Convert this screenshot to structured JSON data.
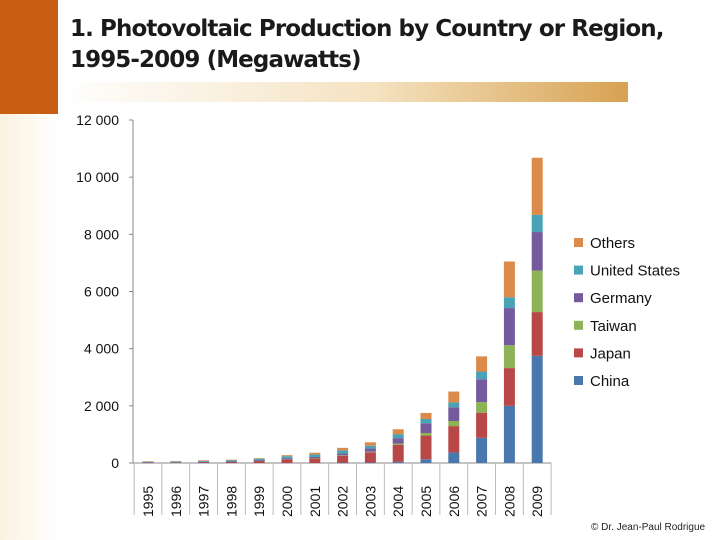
{
  "header": {
    "title": "1. Photovoltaic Production by Country or Region, 1995-2009 (Megawatts)"
  },
  "footer": {
    "credit": "© Dr. Jean-Paul Rodrigue"
  },
  "chart_data": {
    "type": "bar",
    "stacked": true,
    "title": "1. Photovoltaic Production by Country or Region, 1995-2009 (Megawatts)",
    "xlabel": "",
    "ylabel": "",
    "ylim": [
      0,
      12000
    ],
    "y_ticks": [
      0,
      2000,
      4000,
      6000,
      8000,
      10000,
      12000
    ],
    "y_tick_labels": [
      "0",
      "2 000",
      "4 000",
      "6 000",
      "8 000",
      "10 000",
      "12 000"
    ],
    "grid": false,
    "legend_position": "right",
    "categories": [
      "1995",
      "1996",
      "1997",
      "1998",
      "1999",
      "2000",
      "2001",
      "2002",
      "2003",
      "2004",
      "2005",
      "2006",
      "2007",
      "2008",
      "2009"
    ],
    "series": [
      {
        "name": "China",
        "color": "#4a78ad",
        "values": [
          0,
          0,
          0,
          0,
          0,
          0,
          0,
          10,
          15,
          40,
          130,
          370,
          880,
          2000,
          3750
        ]
      },
      {
        "name": "Japan",
        "color": "#b84747",
        "values": [
          15,
          20,
          35,
          45,
          80,
          130,
          170,
          250,
          360,
          600,
          830,
          920,
          880,
          1320,
          1530
        ]
      },
      {
        "name": "Taiwan",
        "color": "#8db357",
        "values": [
          0,
          0,
          0,
          0,
          0,
          0,
          5,
          10,
          20,
          40,
          90,
          180,
          370,
          800,
          1450
        ]
      },
      {
        "name": "Germany",
        "color": "#755a9d",
        "values": [
          5,
          5,
          5,
          5,
          10,
          25,
          35,
          60,
          110,
          190,
          340,
          480,
          800,
          1300,
          1350
        ]
      },
      {
        "name": "United States",
        "color": "#4aa2b5",
        "values": [
          30,
          30,
          40,
          50,
          60,
          80,
          90,
          110,
          100,
          140,
          150,
          170,
          270,
          380,
          600
        ]
      },
      {
        "name": "Others",
        "color": "#db8a49",
        "values": [
          10,
          10,
          15,
          15,
          20,
          40,
          60,
          90,
          120,
          170,
          210,
          380,
          530,
          1250,
          2000
        ]
      }
    ]
  }
}
